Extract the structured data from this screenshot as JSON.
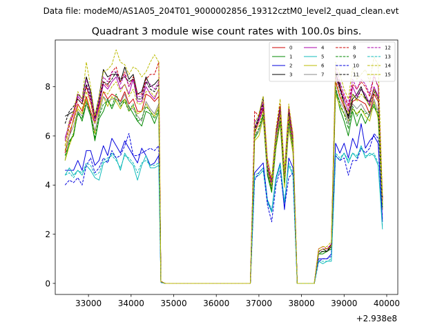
{
  "chart_data": {
    "type": "line",
    "suptitle": "Data file: modeM0/AS1A05_204T01_9000002856_19312cztM0_level2_quad_clean.evt",
    "title": "Quadrant 3 module wise count rates with 100.0s bins.",
    "xlabel": "",
    "ylabel": "",
    "offset_label": "+2.938e8",
    "xlim": [
      32220,
      40260
    ],
    "ylim": [
      -0.45,
      9.9
    ],
    "xticks": [
      33000,
      34000,
      35000,
      36000,
      37000,
      38000,
      39000,
      40000
    ],
    "yticks": [
      0,
      2,
      4,
      6,
      8
    ],
    "legend_position": "upper right",
    "x": [
      32450,
      32550,
      32650,
      32750,
      32850,
      32950,
      33050,
      33150,
      33250,
      33350,
      33450,
      33550,
      33650,
      33750,
      33850,
      33950,
      34050,
      34150,
      34250,
      34350,
      34450,
      34550,
      34650,
      34700,
      34800,
      36800,
      36900,
      37000,
      37100,
      37200,
      37300,
      37400,
      37500,
      37600,
      37700,
      37800,
      37900,
      38000,
      38100,
      38200,
      38300,
      38400,
      38500,
      38600,
      38700,
      38800,
      38900,
      39000,
      39100,
      39200,
      39300,
      39400,
      39500,
      39600,
      39700,
      39800,
      39900
    ],
    "series": [
      {
        "name": "0",
        "color": "#cc0000",
        "dash": "solid",
        "values": [
          5.3,
          6.0,
          6.7,
          7.3,
          7.0,
          7.6,
          7.0,
          6.5,
          7.2,
          7.8,
          7.5,
          7.7,
          7.6,
          7.4,
          7.8,
          7.3,
          7.5,
          7.0,
          7.0,
          7.7,
          7.6,
          7.4,
          7.6,
          0.07,
          0.0,
          0.0,
          6.1,
          6.6,
          7.1,
          4.7,
          3.9,
          5.7,
          6.8,
          4.2,
          6.7,
          5.7,
          0.0,
          0.0,
          0.0,
          0.0,
          0.0,
          1.3,
          1.4,
          1.4,
          1.5,
          8.2,
          7.6,
          7.2,
          6.8,
          7.4,
          7.5,
          7.4,
          7.3,
          6.9,
          7.7,
          7.4,
          3.0
        ]
      },
      {
        "name": "1",
        "color": "#008800",
        "dash": "solid",
        "values": [
          5.0,
          5.8,
          6.0,
          7.0,
          6.6,
          7.3,
          6.8,
          5.8,
          6.7,
          7.0,
          7.5,
          7.1,
          7.5,
          7.3,
          7.5,
          7.2,
          6.9,
          6.6,
          6.4,
          7.0,
          6.9,
          6.5,
          7.0,
          0.05,
          0.0,
          0.0,
          5.9,
          6.2,
          6.8,
          4.4,
          3.7,
          5.6,
          6.6,
          4.0,
          6.5,
          5.5,
          0.0,
          0.0,
          0.0,
          0.0,
          0.0,
          1.2,
          1.2,
          1.3,
          1.5,
          7.9,
          7.1,
          6.6,
          6.0,
          7.0,
          6.4,
          6.9,
          6.5,
          6.9,
          7.2,
          6.8,
          3.2
        ]
      },
      {
        "name": "2",
        "color": "#0000dd",
        "dash": "solid",
        "values": [
          4.6,
          4.6,
          4.6,
          5.0,
          4.6,
          5.4,
          5.4,
          4.8,
          5.0,
          5.6,
          5.2,
          5.9,
          5.6,
          5.3,
          5.8,
          5.5,
          5.2,
          4.9,
          5.5,
          5.2,
          4.8,
          4.9,
          5.2,
          0.04,
          0.0,
          0.0,
          4.5,
          4.7,
          4.9,
          3.4,
          2.9,
          4.3,
          4.9,
          3.0,
          5.1,
          4.7,
          0.0,
          0.0,
          0.0,
          0.0,
          0.0,
          1.0,
          1.0,
          1.0,
          1.2,
          5.7,
          5.3,
          5.7,
          5.1,
          5.9,
          5.5,
          6.5,
          5.5,
          5.8,
          6.0,
          5.7,
          2.5
        ]
      },
      {
        "name": "3",
        "color": "#000000",
        "dash": "solid",
        "values": [
          6.8,
          6.9,
          7.0,
          7.7,
          7.5,
          8.4,
          7.8,
          6.8,
          7.6,
          8.7,
          8.4,
          8.5,
          8.5,
          8.2,
          8.8,
          8.3,
          8.5,
          7.7,
          7.8,
          8.4,
          8.0,
          8.1,
          8.3,
          0.08,
          0.0,
          0.0,
          6.3,
          6.8,
          7.6,
          4.6,
          4.2,
          6.1,
          7.2,
          4.4,
          7.0,
          5.7,
          0.0,
          0.0,
          0.0,
          0.0,
          0.0,
          1.3,
          1.4,
          1.3,
          1.6,
          8.5,
          8.1,
          7.3,
          6.7,
          7.5,
          7.7,
          8.0,
          7.5,
          7.4,
          7.9,
          7.6,
          3.5
        ]
      },
      {
        "name": "4",
        "color": "#aa00aa",
        "dash": "solid",
        "values": [
          5.9,
          6.5,
          6.9,
          7.6,
          7.4,
          8.0,
          7.5,
          6.5,
          7.3,
          8.1,
          7.9,
          8.2,
          8.4,
          7.9,
          8.1,
          7.7,
          8.3,
          7.4,
          7.4,
          8.0,
          7.7,
          7.5,
          7.9,
          0.07,
          0.0,
          0.0,
          6.4,
          6.6,
          7.2,
          4.8,
          4.1,
          6.0,
          7.0,
          4.3,
          6.8,
          5.8,
          0.0,
          0.0,
          0.0,
          0.0,
          0.0,
          1.3,
          1.4,
          1.4,
          1.5,
          8.4,
          7.9,
          7.5,
          7.0,
          8.0,
          7.6,
          7.9,
          7.7,
          7.3,
          8.0,
          7.6,
          3.3
        ]
      },
      {
        "name": "5",
        "color": "#11bbbb",
        "dash": "solid",
        "values": [
          4.4,
          4.7,
          4.4,
          4.6,
          4.4,
          4.8,
          4.6,
          4.3,
          4.2,
          4.9,
          5.0,
          5.3,
          5.1,
          4.6,
          5.3,
          5.0,
          4.8,
          4.2,
          4.8,
          5.2,
          4.7,
          4.7,
          4.8,
          0.04,
          0.0,
          0.0,
          4.3,
          4.4,
          4.6,
          3.3,
          2.9,
          4.2,
          4.8,
          3.3,
          4.8,
          4.4,
          0.0,
          0.0,
          0.0,
          0.0,
          0.0,
          0.9,
          0.8,
          0.9,
          0.9,
          5.2,
          5.0,
          5.3,
          4.9,
          5.3,
          5.1,
          5.6,
          5.1,
          5.3,
          5.2,
          4.8,
          2.2
        ]
      },
      {
        "name": "6",
        "color": "#bbbb00",
        "dash": "solid",
        "values": [
          5.0,
          5.6,
          6.1,
          7.1,
          6.9,
          7.5,
          6.9,
          6.1,
          7.0,
          7.6,
          7.2,
          7.6,
          7.4,
          7.1,
          7.5,
          7.0,
          7.2,
          6.9,
          7.0,
          7.3,
          7.0,
          6.8,
          7.2,
          0.06,
          0.0,
          0.0,
          5.8,
          6.0,
          6.7,
          4.5,
          3.8,
          5.5,
          6.5,
          3.9,
          6.3,
          5.3,
          0.0,
          0.0,
          0.0,
          0.0,
          0.0,
          1.2,
          1.3,
          1.3,
          1.4,
          7.7,
          7.2,
          6.9,
          6.6,
          7.1,
          6.9,
          7.1,
          6.8,
          6.6,
          7.4,
          6.7,
          3.1
        ]
      },
      {
        "name": "7",
        "color": "#888888",
        "dash": "solid",
        "values": [
          5.4,
          6.0,
          6.4,
          7.0,
          6.8,
          7.3,
          6.9,
          6.2,
          6.9,
          7.6,
          7.4,
          7.5,
          7.5,
          7.3,
          7.7,
          7.1,
          7.1,
          6.8,
          6.6,
          7.4,
          7.1,
          6.9,
          7.3,
          0.06,
          0.0,
          0.0,
          6.0,
          6.2,
          6.9,
          4.5,
          3.9,
          5.7,
          6.7,
          4.1,
          6.5,
          5.5,
          0.0,
          0.0,
          0.0,
          0.0,
          0.0,
          1.2,
          1.3,
          1.3,
          1.4,
          7.9,
          7.4,
          7.1,
          6.5,
          7.3,
          7.1,
          7.3,
          7.0,
          6.8,
          7.5,
          7.0,
          3.0
        ]
      },
      {
        "name": "8",
        "color": "#cc0000",
        "dash": "dashed",
        "values": [
          5.6,
          6.4,
          6.9,
          7.5,
          7.3,
          8.0,
          7.4,
          6.7,
          7.5,
          8.2,
          8.0,
          8.6,
          8.8,
          8.2,
          8.6,
          8.0,
          8.4,
          7.7,
          7.7,
          8.3,
          8.5,
          8.5,
          9.0,
          0.08,
          0.0,
          0.0,
          7.0,
          6.8,
          7.4,
          5.0,
          4.2,
          6.2,
          7.3,
          4.5,
          7.2,
          6.0,
          0.0,
          0.0,
          0.0,
          0.0,
          0.0,
          1.4,
          1.5,
          1.4,
          1.6,
          8.6,
          8.0,
          7.6,
          7.2,
          8.1,
          7.9,
          8.2,
          8.0,
          7.6,
          8.4,
          8.0,
          3.4
        ]
      },
      {
        "name": "9",
        "color": "#008800",
        "dash": "dashed",
        "values": [
          5.2,
          5.7,
          6.1,
          6.9,
          6.7,
          7.4,
          6.9,
          5.9,
          6.8,
          7.3,
          7.4,
          7.2,
          7.7,
          7.2,
          7.4,
          7.0,
          7.3,
          6.6,
          6.7,
          7.2,
          7.0,
          6.7,
          7.1,
          0.05,
          0.0,
          0.0,
          6.0,
          6.3,
          6.9,
          4.5,
          3.8,
          5.6,
          6.6,
          4.1,
          6.6,
          5.5,
          0.0,
          0.0,
          0.0,
          0.0,
          0.0,
          1.2,
          1.3,
          1.3,
          1.4,
          8.0,
          7.3,
          6.9,
          6.3,
          7.2,
          6.8,
          7.1,
          6.9,
          7.0,
          7.3,
          6.9,
          3.1
        ]
      },
      {
        "name": "10",
        "color": "#0000dd",
        "dash": "dashed",
        "values": [
          4.0,
          4.2,
          4.1,
          4.3,
          4.0,
          4.8,
          5.1,
          4.5,
          4.7,
          5.1,
          4.9,
          5.4,
          5.1,
          5.2,
          5.6,
          6.1,
          5.2,
          5.2,
          5.3,
          5.4,
          5.5,
          5.4,
          5.6,
          0.04,
          0.0,
          0.0,
          4.2,
          4.5,
          4.7,
          3.2,
          2.5,
          4.0,
          4.6,
          3.1,
          4.3,
          4.5,
          0.0,
          0.0,
          0.0,
          0.0,
          0.0,
          0.9,
          1.0,
          1.0,
          1.1,
          5.2,
          5.0,
          5.1,
          4.4,
          5.0,
          5.0,
          5.5,
          5.3,
          5.5,
          6.1,
          5.9,
          2.6
        ]
      },
      {
        "name": "11",
        "color": "#000000",
        "dash": "dashed",
        "values": [
          6.5,
          7.0,
          7.2,
          7.5,
          7.3,
          8.1,
          7.6,
          6.7,
          7.4,
          8.2,
          8.1,
          8.3,
          8.6,
          8.3,
          8.4,
          8.2,
          8.3,
          7.5,
          7.5,
          8.2,
          7.9,
          7.8,
          8.1,
          0.07,
          0.0,
          0.0,
          6.2,
          6.7,
          7.3,
          4.8,
          4.0,
          6.0,
          7.0,
          4.3,
          6.9,
          5.8,
          0.0,
          0.0,
          0.0,
          0.0,
          0.0,
          1.3,
          1.3,
          1.3,
          1.5,
          8.6,
          7.9,
          7.3,
          6.8,
          7.7,
          7.5,
          7.9,
          7.6,
          7.2,
          7.8,
          7.5,
          3.4
        ]
      },
      {
        "name": "12",
        "color": "#aa00aa",
        "dash": "dashed",
        "values": [
          5.8,
          6.6,
          7.0,
          7.7,
          7.5,
          8.3,
          7.7,
          6.6,
          7.5,
          8.4,
          8.2,
          8.6,
          8.6,
          8.1,
          8.5,
          8.0,
          8.3,
          7.6,
          7.6,
          8.2,
          8.1,
          7.9,
          8.2,
          0.07,
          0.0,
          0.0,
          6.6,
          6.7,
          7.4,
          4.8,
          4.1,
          6.1,
          7.1,
          4.4,
          7.1,
          5.9,
          0.0,
          0.0,
          0.0,
          0.0,
          0.0,
          1.3,
          1.4,
          1.4,
          1.6,
          8.8,
          8.2,
          7.7,
          7.3,
          8.3,
          7.9,
          8.3,
          8.1,
          7.7,
          8.5,
          8.0,
          3.4
        ]
      },
      {
        "name": "13",
        "color": "#11bbbb",
        "dash": "dashed",
        "values": [
          4.4,
          4.5,
          4.3,
          4.6,
          4.5,
          4.9,
          4.8,
          4.4,
          4.5,
          5.0,
          5.1,
          5.2,
          5.0,
          4.7,
          5.2,
          5.1,
          4.9,
          4.5,
          4.9,
          5.0,
          4.8,
          4.8,
          4.9,
          0.04,
          0.0,
          0.0,
          4.4,
          4.5,
          4.7,
          3.4,
          3.0,
          4.3,
          4.9,
          3.3,
          4.9,
          4.5,
          0.0,
          0.0,
          0.0,
          0.0,
          0.0,
          0.9,
          0.9,
          0.9,
          1.0,
          5.3,
          5.1,
          5.3,
          5.0,
          5.3,
          5.2,
          5.5,
          5.2,
          5.2,
          5.3,
          4.9,
          2.3
        ]
      },
      {
        "name": "14",
        "color": "#bbbb00",
        "dash": "dashed",
        "values": [
          5.6,
          6.6,
          7.0,
          7.8,
          7.5,
          9.0,
          8.0,
          6.8,
          7.6,
          8.6,
          8.7,
          8.9,
          9.5,
          9.0,
          8.9,
          8.5,
          8.8,
          8.7,
          8.4,
          8.6,
          9.0,
          9.3,
          9.0,
          0.08,
          0.0,
          0.0,
          6.5,
          6.9,
          7.6,
          5.1,
          4.3,
          6.3,
          7.5,
          4.6,
          7.3,
          6.1,
          0.0,
          0.0,
          0.0,
          0.0,
          0.0,
          1.4,
          1.5,
          1.5,
          1.7,
          9.0,
          8.5,
          7.9,
          7.5,
          8.8,
          8.3,
          8.5,
          8.7,
          8.2,
          9.2,
          8.9,
          3.6
        ]
      },
      {
        "name": "15",
        "color": "#bbbb00",
        "dash": "dashed",
        "values": [
          5.4,
          6.2,
          6.6,
          7.2,
          7.1,
          7.8,
          7.3,
          6.5,
          7.1,
          7.8,
          7.7,
          8.0,
          8.2,
          7.8,
          8.1,
          7.6,
          7.9,
          7.3,
          7.3,
          7.8,
          7.8,
          7.6,
          7.9,
          0.07,
          0.0,
          0.0,
          6.2,
          6.4,
          7.0,
          4.7,
          4.0,
          5.9,
          6.9,
          4.3,
          6.8,
          5.7,
          0.0,
          0.0,
          0.0,
          0.0,
          0.0,
          1.3,
          1.4,
          1.4,
          1.5,
          8.3,
          7.7,
          7.3,
          6.9,
          7.7,
          7.4,
          7.7,
          7.5,
          7.2,
          7.9,
          7.5,
          3.2
        ]
      }
    ]
  }
}
